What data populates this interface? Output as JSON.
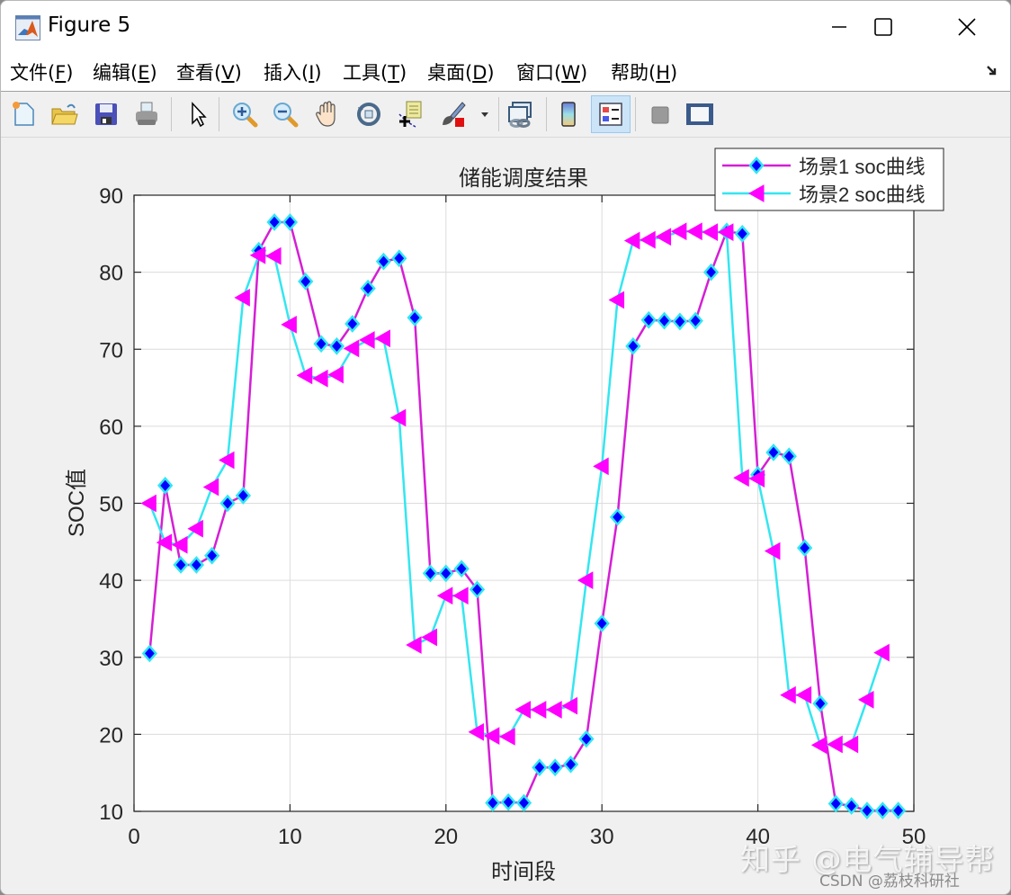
{
  "window": {
    "title": "Figure 5",
    "controls": {
      "minimize": "minimize",
      "maximize": "maximize",
      "close": "close"
    }
  },
  "menubar": {
    "items": [
      {
        "label": "文件(",
        "key": "F",
        "suffix": ")"
      },
      {
        "label": "编辑(",
        "key": "E",
        "suffix": ")"
      },
      {
        "label": "查看(",
        "key": "V",
        "suffix": ")"
      },
      {
        "label": "插入(",
        "key": "I",
        "suffix": ")"
      },
      {
        "label": "工具(",
        "key": "T",
        "suffix": ")"
      },
      {
        "label": "桌面(",
        "key": "D",
        "suffix": ")"
      },
      {
        "label": "窗口(",
        "key": "W",
        "suffix": ")"
      },
      {
        "label": "帮助(",
        "key": "H",
        "suffix": ")"
      }
    ]
  },
  "toolbar": {
    "buttons": [
      "new-figure",
      "open-file",
      "save-figure",
      "print-figure",
      "edit-plot-arrow",
      "zoom-in",
      "zoom-out",
      "pan",
      "rotate-3d",
      "data-cursor",
      "brush",
      "brush-dropdown",
      "link-plot",
      "insert-colorbar",
      "insert-legend",
      "hide-plot-tools",
      "show-plot-tools"
    ],
    "active": "insert-legend"
  },
  "chart_data": {
    "type": "line",
    "title": "储能调度结果",
    "xlabel": "时间段",
    "ylabel": "SOC值",
    "xlim": [
      0,
      50
    ],
    "ylim": [
      10,
      90
    ],
    "xticks": [
      0,
      10,
      20,
      30,
      40,
      50
    ],
    "yticks": [
      10,
      20,
      30,
      40,
      50,
      60,
      70,
      80,
      90
    ],
    "grid": true,
    "legend_position": "northeast (outside top-right)",
    "series": [
      {
        "name": "场景1 soc曲线",
        "line_color": "#d41fd4",
        "marker": "diamond",
        "marker_face": "#0000ff",
        "marker_edge": "#33e6f0",
        "x": [
          1,
          2,
          3,
          4,
          5,
          6,
          7,
          8,
          9,
          10,
          11,
          12,
          13,
          14,
          15,
          16,
          17,
          18,
          19,
          20,
          21,
          22,
          23,
          24,
          25,
          26,
          27,
          28,
          29,
          30,
          31,
          32,
          33,
          34,
          35,
          36,
          37,
          38,
          39,
          40,
          41,
          42,
          43,
          44,
          45,
          46,
          47,
          48,
          49
        ],
        "values": [
          30.5,
          52.3,
          42,
          42,
          43.2,
          50,
          51,
          82.8,
          86.5,
          86.5,
          78.8,
          70.7,
          70.4,
          73.3,
          77.9,
          81.4,
          81.8,
          74.1,
          40.9,
          40.9,
          41.5,
          38.8,
          11.1,
          11.2,
          11.1,
          15.7,
          15.7,
          16.1,
          19.4,
          34.4,
          48.2,
          70.4,
          73.8,
          73.7,
          73.6,
          73.7,
          80,
          85.3,
          85,
          53.7,
          56.6,
          56.1,
          44.2,
          24,
          11,
          10.7,
          10.1,
          10.1,
          10.1
        ]
      },
      {
        "name": "场景2 soc曲线",
        "line_color": "#33e6f0",
        "marker": "triangle-left",
        "marker_face": "#ff00ff",
        "marker_edge": "#ff00ff",
        "x": [
          1,
          2,
          3,
          4,
          5,
          6,
          7,
          8,
          9,
          10,
          11,
          12,
          13,
          14,
          15,
          16,
          17,
          18,
          19,
          20,
          21,
          22,
          23,
          24,
          25,
          26,
          27,
          28,
          29,
          30,
          31,
          32,
          33,
          34,
          35,
          36,
          37,
          38,
          39,
          40,
          41,
          42,
          43,
          44,
          45,
          46,
          47,
          48
        ],
        "values": [
          50,
          44.9,
          44.6,
          46.7,
          52.1,
          55.6,
          76.7,
          82.2,
          82.1,
          73.2,
          66.6,
          66.2,
          66.7,
          70.1,
          71.2,
          71.4,
          61.1,
          31.6,
          32.6,
          38,
          38,
          20.3,
          19.8,
          19.7,
          23.2,
          23.2,
          23.2,
          23.7,
          40,
          54.8,
          76.4,
          84.1,
          84.2,
          84.6,
          85.3,
          85.3,
          85.2,
          85.2,
          53.3,
          53.2,
          43.8,
          25.1,
          25.1,
          18.6,
          18.7,
          18.7,
          24.5,
          30.6
        ]
      }
    ]
  },
  "watermarks": {
    "zhihu": "知乎 @电气辅导帮",
    "csdn": "CSDN @荔枝科研社"
  }
}
